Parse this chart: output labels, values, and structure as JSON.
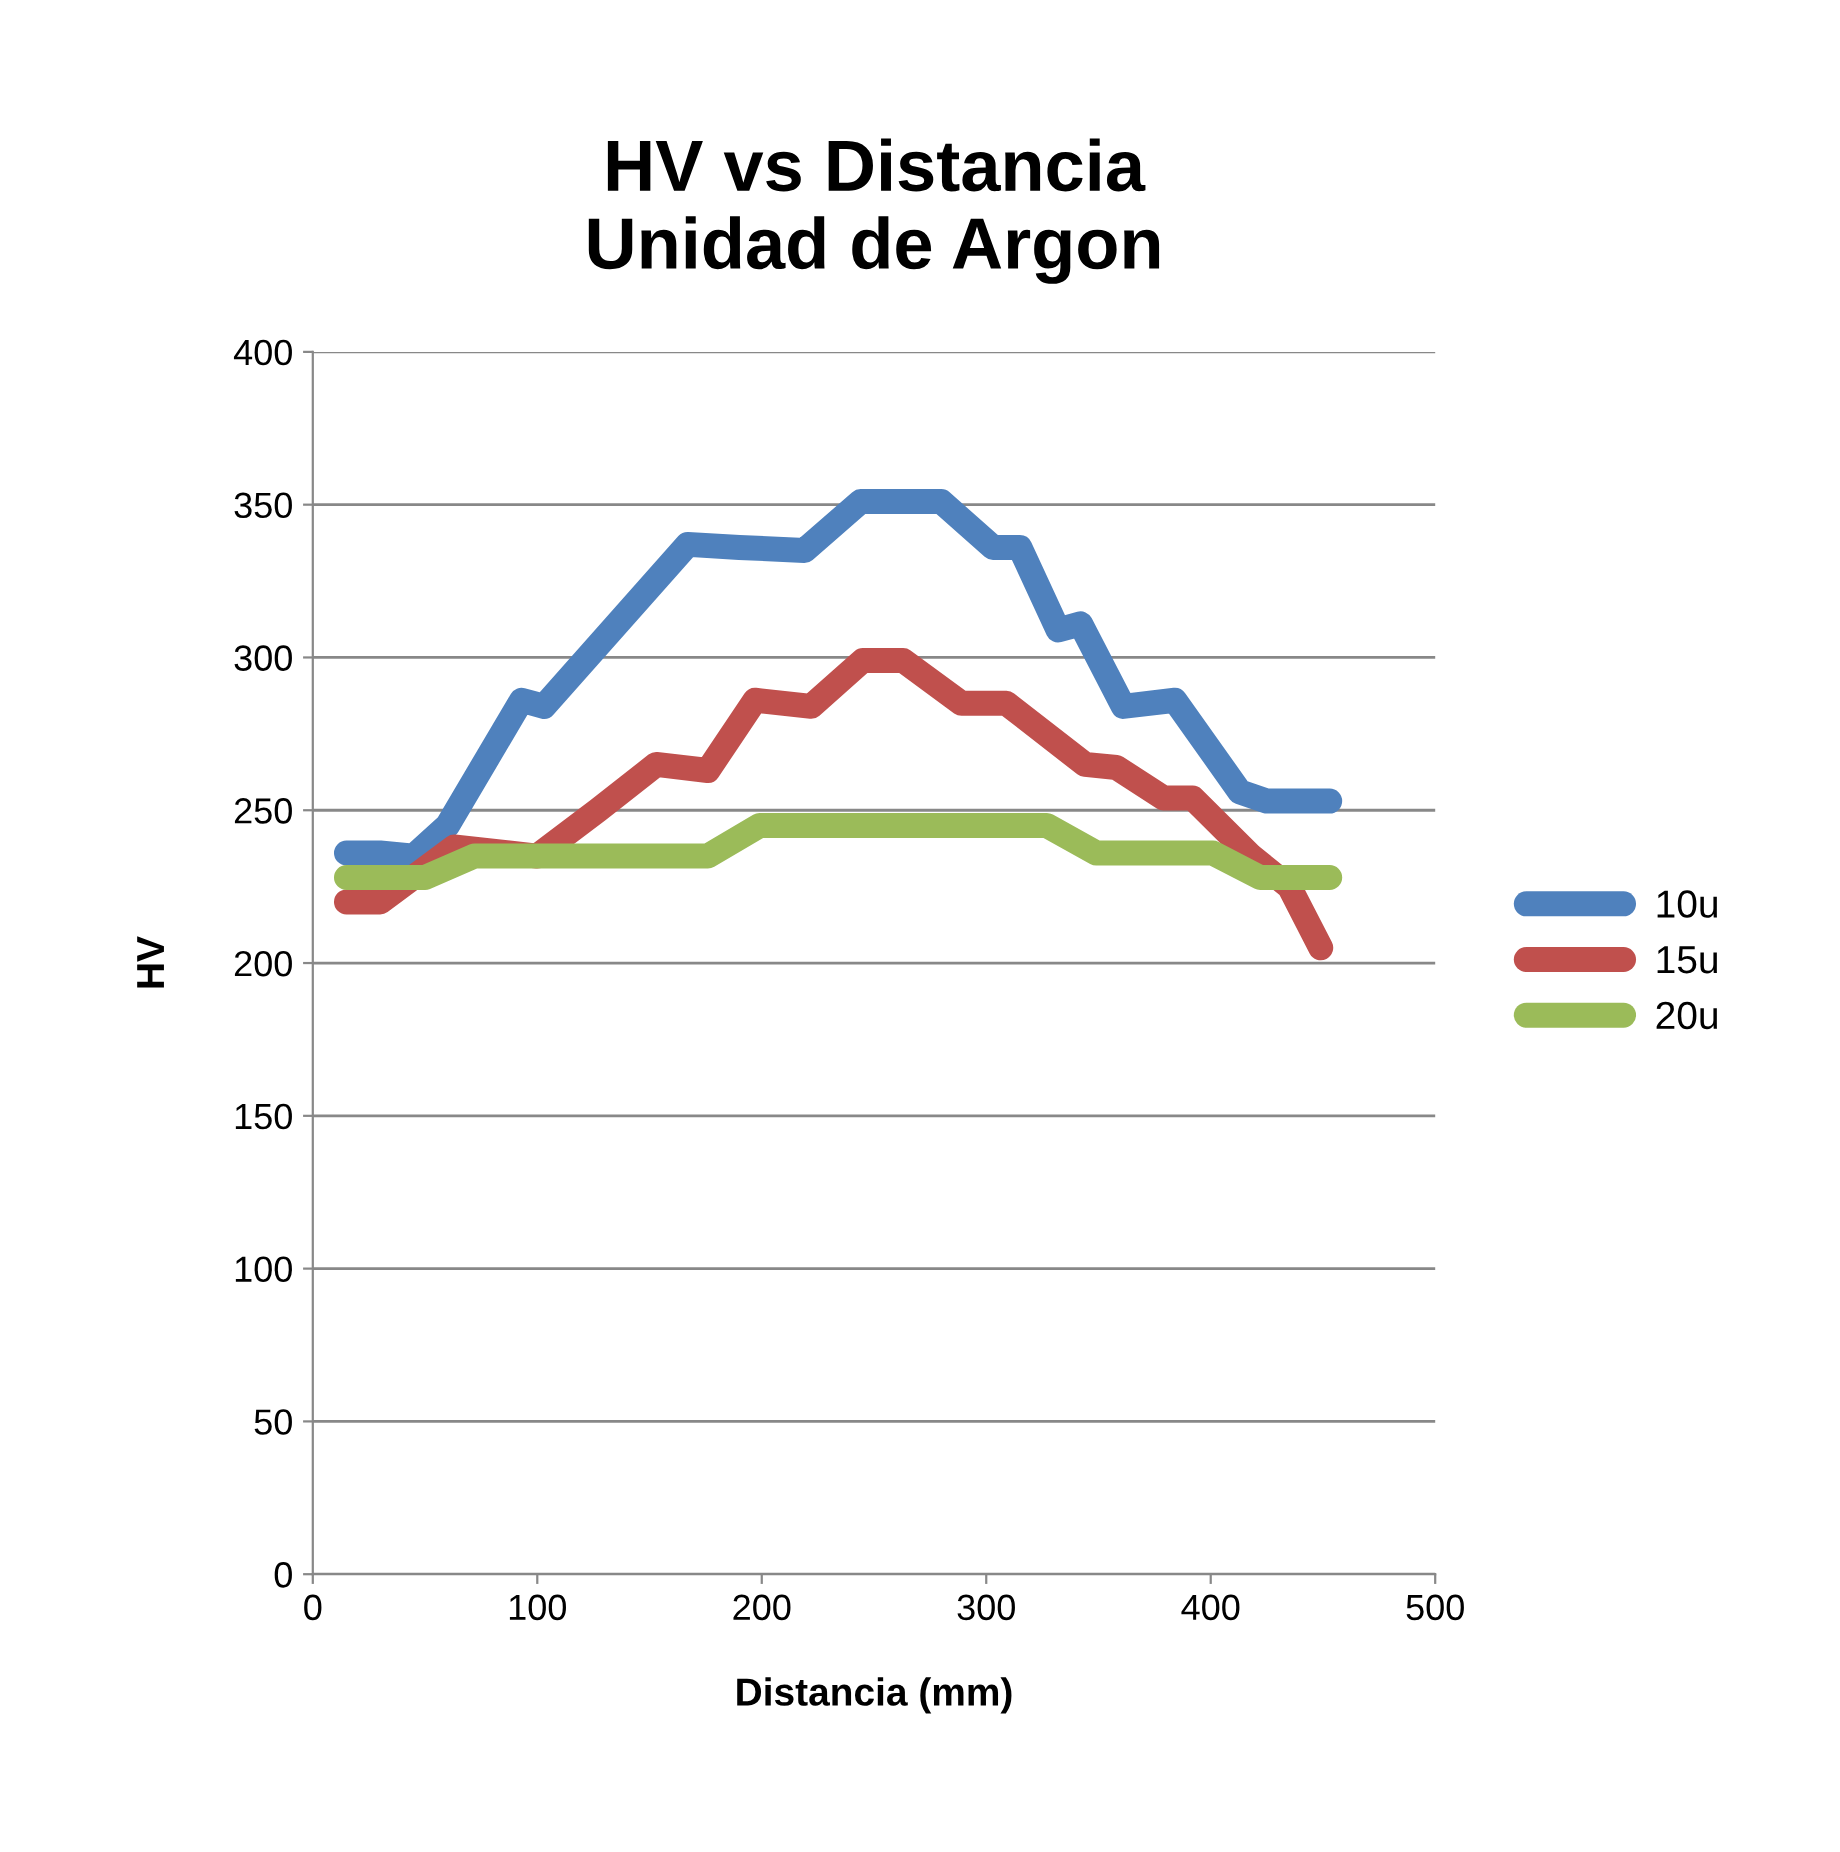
{
  "chart_data": {
    "type": "line",
    "title": "HV vs Distancia\nUnidad de Argon",
    "xlabel": "Distancia (mm)",
    "ylabel": "HV",
    "xlim": [
      0,
      500
    ],
    "xticks": [
      0,
      100,
      200,
      300,
      400,
      500
    ],
    "ylim": [
      0,
      400
    ],
    "yticks": [
      0,
      50,
      100,
      150,
      200,
      250,
      300,
      350,
      400
    ],
    "grid": "y",
    "legend": "right",
    "line_style": "solid",
    "series": [
      {
        "name": "10u",
        "color": "#4f81bd",
        "x": [
          15,
          30,
          45,
          60,
          93,
          103,
          167,
          190,
          219,
          244,
          280,
          303,
          315,
          332,
          342,
          361,
          384,
          413,
          425,
          453
        ],
        "values": [
          236,
          236,
          235,
          245,
          286,
          284,
          337,
          336,
          335,
          351,
          351,
          336,
          336,
          309,
          311,
          284,
          286,
          256,
          253,
          253
        ]
      },
      {
        "name": "15u",
        "color": "#c0504d",
        "x": [
          15,
          30,
          63,
          100,
          127,
          153,
          176,
          197,
          222,
          245,
          263,
          289,
          309,
          344,
          358,
          379,
          392,
          418,
          435,
          449
        ],
        "values": [
          220,
          220,
          238,
          235,
          250,
          265,
          263,
          286,
          284,
          299,
          299,
          285,
          285,
          265,
          264,
          254,
          254,
          235,
          225,
          205
        ]
      },
      {
        "name": "20u",
        "color": "#9bbb59",
        "x": [
          15,
          50,
          72,
          176,
          199,
          327,
          349,
          401,
          422,
          453
        ],
        "values": [
          228,
          228,
          235,
          235,
          245,
          245,
          236,
          236,
          228,
          228
        ]
      }
    ]
  }
}
